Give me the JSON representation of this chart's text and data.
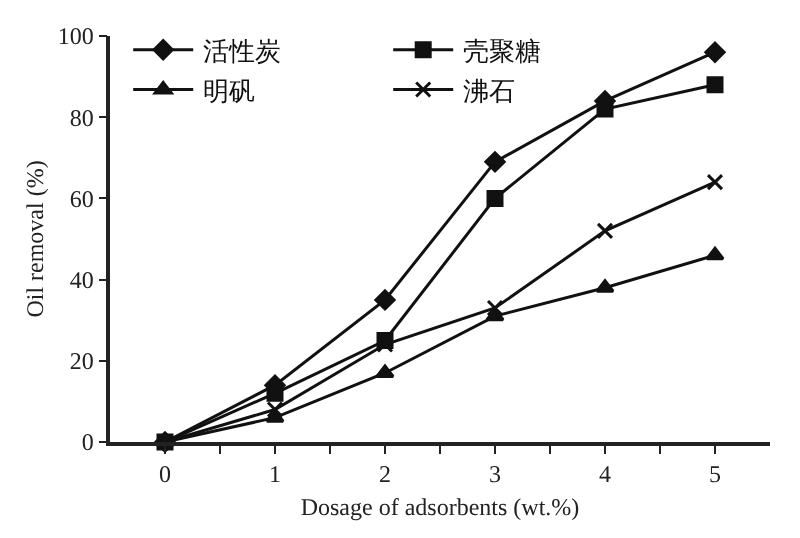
{
  "chart_data": {
    "type": "line",
    "xlabel": "Dosage of adsorbents (wt.%)",
    "ylabel": "Oil removal (%)",
    "x": [
      0,
      1,
      2,
      3,
      4,
      5
    ],
    "series": [
      {
        "name": "活性炭",
        "color": "#111111",
        "marker": "diamond",
        "values": [
          0,
          14,
          35,
          69,
          84,
          96
        ]
      },
      {
        "name": "壳聚糖",
        "color": "#111111",
        "marker": "square",
        "values": [
          0,
          12,
          25,
          60,
          82,
          88
        ]
      },
      {
        "name": "明矾",
        "color": "#111111",
        "marker": "triangle",
        "values": [
          0,
          6,
          17,
          31,
          38,
          46
        ]
      },
      {
        "name": "沸石",
        "color": "#111111",
        "marker": "cross",
        "values": [
          0,
          8,
          24,
          33,
          52,
          64
        ]
      }
    ],
    "xlim": [
      -0.5,
      5.5
    ],
    "xticks": [
      0,
      {
        "value": 0.5,
        "label": null
      },
      1,
      {
        "value": 1.5,
        "label": null
      },
      2,
      {
        "value": 2.5,
        "label": null
      },
      3,
      {
        "value": 3.5,
        "label": null
      },
      4,
      {
        "value": 4.5,
        "label": null
      },
      5
    ],
    "ylim": [
      0,
      100
    ],
    "yticks": [
      0,
      20,
      40,
      60,
      80,
      100
    ],
    "legend": "top left",
    "line_style": "solid"
  }
}
